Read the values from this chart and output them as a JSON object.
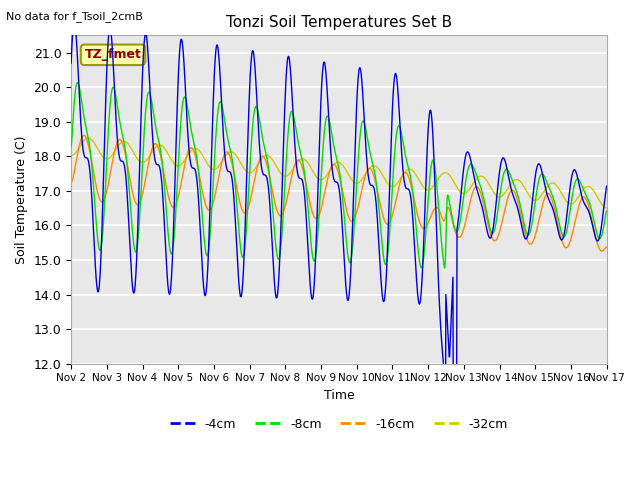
{
  "title": "Tonzi Soil Temperatures Set B",
  "no_data_text": "No data for f_Tsoil_2cmB",
  "xlabel": "Time",
  "ylabel": "Soil Temperature (C)",
  "ylim": [
    12.0,
    21.5
  ],
  "yticks": [
    12.0,
    13.0,
    14.0,
    15.0,
    16.0,
    17.0,
    18.0,
    19.0,
    20.0,
    21.0
  ],
  "xtick_labels": [
    "Nov 2",
    "Nov 3",
    "Nov 4",
    "Nov 5",
    "Nov 6",
    "Nov 7",
    "Nov 8",
    "Nov 9",
    "Nov 10",
    "Nov 11",
    "Nov 12",
    "Nov 13",
    "Nov 14",
    "Nov 15",
    "Nov 16",
    "Nov 17"
  ],
  "legend_labels": [
    "-4cm",
    "-8cm",
    "-16cm",
    "-32cm"
  ],
  "line_colors": [
    "#0000dd",
    "#00dd00",
    "#ff8800",
    "#cccc00"
  ],
  "tz_fmet_label": "TZ_fmet",
  "bg_color": "#e8e8e8",
  "grid_color": "white",
  "figsize": [
    6.4,
    4.8
  ],
  "dpi": 100
}
